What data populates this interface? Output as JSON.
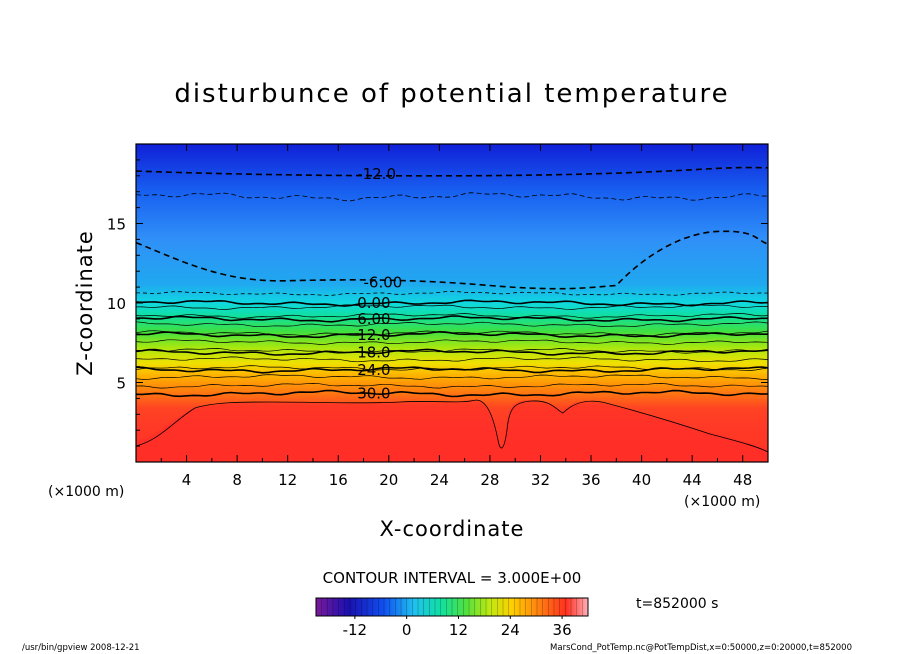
{
  "chart_data": {
    "type": "heatmap",
    "title": "disturbunce of potential temperature",
    "xlabel": "X-coordinate",
    "ylabel": "Z-coordinate",
    "x_unit": "(×1000 m)",
    "y_unit": "(×1000 m)",
    "xlim": [
      0,
      50
    ],
    "ylim": [
      0,
      20
    ],
    "x_ticks": [
      4,
      8,
      12,
      16,
      20,
      24,
      28,
      32,
      36,
      40,
      44,
      48
    ],
    "y_ticks": [
      5,
      10,
      15
    ],
    "contour_interval_text": "CONTOUR INTERVAL = 3.000E+00",
    "contours": [
      {
        "label": "-12.0",
        "value": -12,
        "z": 18.1
      },
      {
        "label": "-6.00",
        "value": -6,
        "z": 11.3
      },
      {
        "label": "0.00",
        "value": 0,
        "z": 10.0
      },
      {
        "label": "6.00",
        "value": 6,
        "z": 9.0
      },
      {
        "label": "12.0",
        "value": 12,
        "z": 8.0
      },
      {
        "label": "18.0",
        "value": 18,
        "z": 6.9
      },
      {
        "label": "24.0",
        "value": 24,
        "z": 5.8
      },
      {
        "label": "30.0",
        "value": 30,
        "z": 4.3
      }
    ],
    "colorbar": {
      "ticks": [
        -12,
        0,
        12,
        24,
        36
      ],
      "min": -21,
      "max": 42
    },
    "time_label": "t=852000 s",
    "colors": {
      "cold": "#1020d0",
      "cool": "#2aa0f0",
      "mid": "#20e080",
      "warm": "#f0e000",
      "hot": "#ff3020"
    }
  },
  "footer": {
    "left": "/usr/bin/gpview   2008-12-21",
    "right": "MarsCond_PotTemp.nc@PotTempDist,x=0:50000,z=0:20000,t=852000"
  }
}
